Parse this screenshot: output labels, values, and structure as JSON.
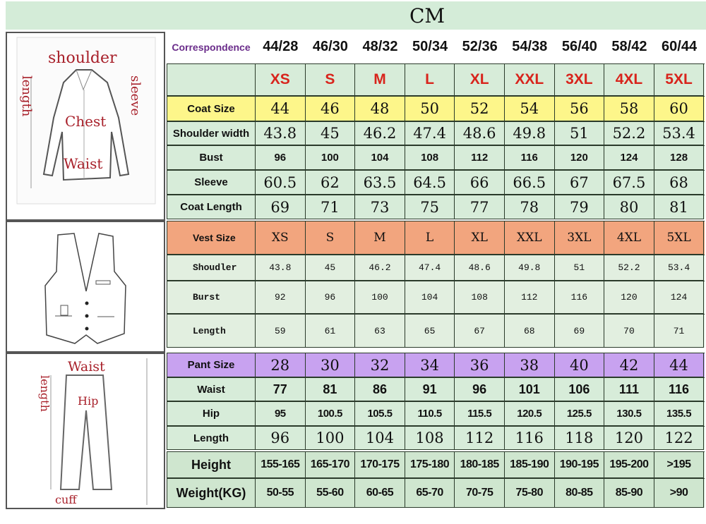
{
  "unit": "CM",
  "colors": {
    "background": "#d7ecd9",
    "coat_header": "#fdf68a",
    "vest_header": "#f2a57e",
    "pant_header": "#c8a2f0",
    "size_letter": "#d8241c",
    "label_red": "#a8202a"
  },
  "illustrations": {
    "coat": {
      "labels": {
        "shoulder": "shoulder",
        "length": "length",
        "sleeve": "sleeve",
        "chest": "Chest",
        "waist": "Waist"
      }
    },
    "vest": {},
    "pants": {
      "labels": {
        "waist": "Waist",
        "length": "length",
        "hip": "Hip",
        "cuff": "cuff"
      }
    }
  },
  "correspondence": {
    "label": "Correspondence",
    "values": [
      "44/28",
      "46/30",
      "48/32",
      "50/34",
      "52/36",
      "54/38",
      "56/40",
      "58/42",
      "60/44"
    ]
  },
  "size_letters": {
    "label": "",
    "values": [
      "XS",
      "S",
      "M",
      "L",
      "XL",
      "XXL",
      "3XL",
      "4XL",
      "5XL"
    ]
  },
  "coat": {
    "header": {
      "label": "Coat Size",
      "values": [
        "44",
        "46",
        "48",
        "50",
        "52",
        "54",
        "56",
        "58",
        "60"
      ]
    },
    "rows": [
      {
        "label": "Shoulder width",
        "values": [
          "43.8",
          "45",
          "46.2",
          "47.4",
          "48.6",
          "49.8",
          "51",
          "52.2",
          "53.4"
        ]
      },
      {
        "label": "Bust",
        "values": [
          "96",
          "100",
          "104",
          "108",
          "112",
          "116",
          "120",
          "124",
          "128"
        ]
      },
      {
        "label": "Sleeve",
        "values": [
          "60.5",
          "62",
          "63.5",
          "64.5",
          "66",
          "66.5",
          "67",
          "67.5",
          "68"
        ]
      },
      {
        "label": "Coat Length",
        "values": [
          "69",
          "71",
          "73",
          "75",
          "77",
          "78",
          "79",
          "80",
          "81"
        ]
      }
    ]
  },
  "vest": {
    "header": {
      "label": "Vest Size",
      "values": [
        "XS",
        "S",
        "M",
        "L",
        "XL",
        "XXL",
        "3XL",
        "4XL",
        "5XL"
      ]
    },
    "rows": [
      {
        "label": "Shoudler",
        "values": [
          "43.8",
          "45",
          "46.2",
          "47.4",
          "48.6",
          "49.8",
          "51",
          "52.2",
          "53.4"
        ]
      },
      {
        "label": "Burst",
        "values": [
          "92",
          "96",
          "100",
          "104",
          "108",
          "112",
          "116",
          "120",
          "124"
        ]
      },
      {
        "label": "Length",
        "values": [
          "59",
          "61",
          "63",
          "65",
          "67",
          "68",
          "69",
          "70",
          "71"
        ]
      }
    ]
  },
  "pant": {
    "header": {
      "label": "Pant Size",
      "values": [
        "28",
        "30",
        "32",
        "34",
        "36",
        "38",
        "40",
        "42",
        "44"
      ]
    },
    "rows": [
      {
        "label": "Waist",
        "values": [
          "77",
          "81",
          "86",
          "91",
          "96",
          "101",
          "106",
          "111",
          "116"
        ]
      },
      {
        "label": "Hip",
        "values": [
          "95",
          "100.5",
          "105.5",
          "110.5",
          "115.5",
          "120.5",
          "125.5",
          "130.5",
          "135.5"
        ]
      },
      {
        "label": "Length",
        "values": [
          "96",
          "100",
          "104",
          "108",
          "112",
          "116",
          "118",
          "120",
          "122"
        ]
      }
    ]
  },
  "fit": {
    "rows": [
      {
        "label": "Height",
        "values": [
          "155-165",
          "165-170",
          "170-175",
          "175-180",
          "180-185",
          "185-190",
          "190-195",
          "195-200",
          ">195"
        ]
      },
      {
        "label": "Weight(KG)",
        "values": [
          "50-55",
          "55-60",
          "60-65",
          "65-70",
          "70-75",
          "75-80",
          "80-85",
          "85-90",
          ">90"
        ]
      }
    ]
  }
}
